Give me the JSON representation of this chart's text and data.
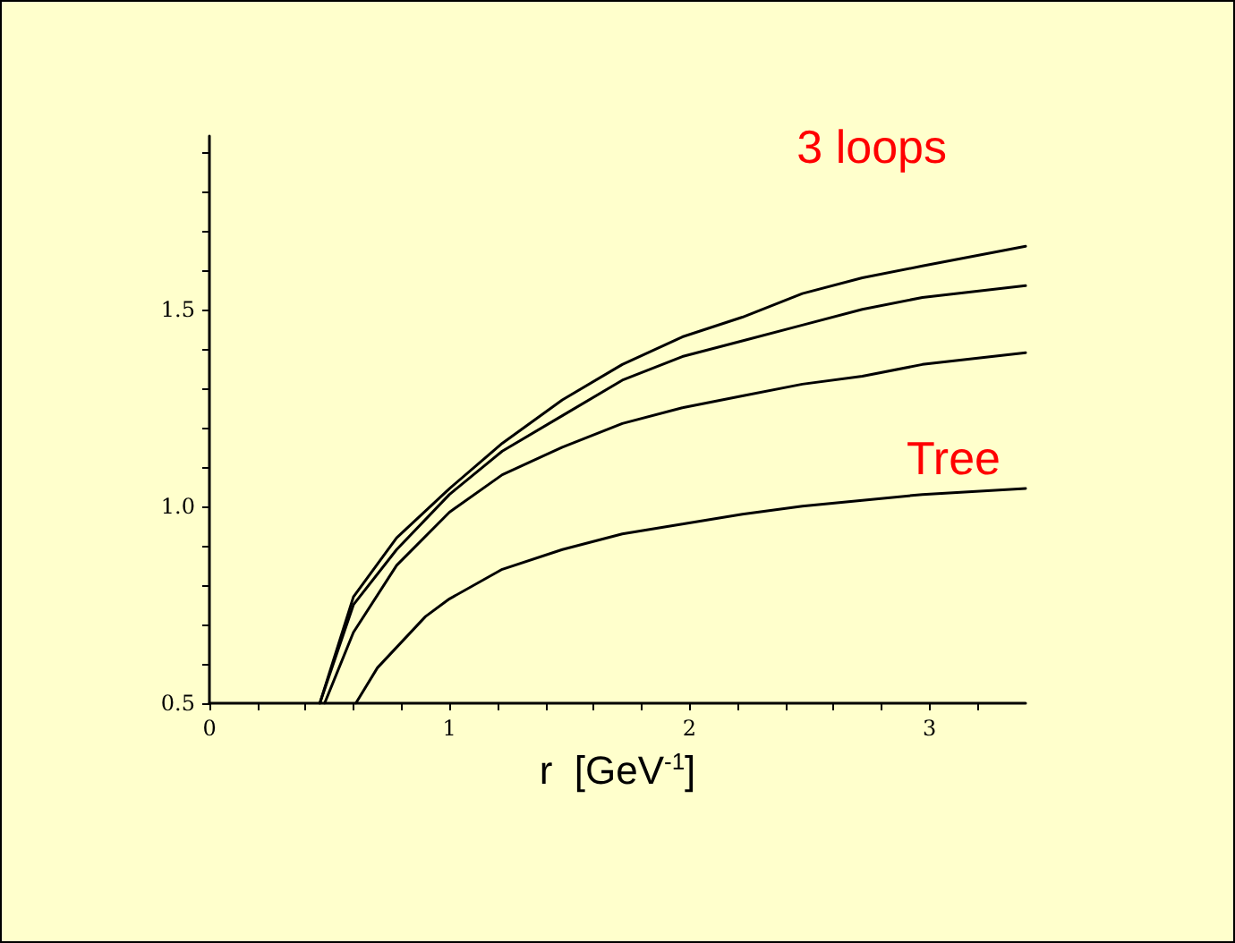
{
  "chart_data": {
    "type": "line",
    "xlabel": "r  [GeV$^{-1}$]",
    "annotations": [
      "3 loops",
      {
        "text": "Tree",
        "x": 3.1,
        "y": 1.05
      }
    ],
    "xlim": [
      0,
      3.4
    ],
    "ylim": [
      0.5,
      1.94
    ],
    "xticks": [
      0,
      {
        "value": 0.2,
        "label": null
      },
      {
        "value": 0.4,
        "label": null
      },
      {
        "value": 0.6,
        "label": null
      },
      {
        "value": 0.8,
        "label": null
      },
      1,
      {
        "value": 1.2,
        "label": null
      },
      {
        "value": 1.4,
        "label": null
      },
      {
        "value": 1.6,
        "label": null
      },
      {
        "value": 1.8,
        "label": null
      },
      2,
      {
        "value": 2.2,
        "label": null
      },
      {
        "value": 2.4,
        "label": null
      },
      {
        "value": 2.6,
        "label": null
      },
      {
        "value": 2.8,
        "label": null
      },
      3,
      {
        "value": 3.2,
        "label": null
      }
    ],
    "yticks": [
      {
        "value": 0.5,
        "label": "0.5"
      },
      {
        "value": 0.6,
        "label": null
      },
      {
        "value": 0.7,
        "label": null
      },
      {
        "value": 0.8,
        "label": null
      },
      {
        "value": 0.9,
        "label": null
      },
      {
        "value": 1.0,
        "label": "1.0"
      },
      {
        "value": 1.1,
        "label": null
      },
      {
        "value": 1.2,
        "label": null
      },
      {
        "value": 1.3,
        "label": null
      },
      {
        "value": 1.4,
        "label": null
      },
      {
        "value": 1.5,
        "label": "1.5"
      },
      {
        "value": 1.6,
        "label": null
      },
      {
        "value": 1.7,
        "label": null
      },
      {
        "value": 1.8,
        "label": null
      },
      {
        "value": 1.9,
        "label": null
      }
    ],
    "grid": false,
    "marker": "none",
    "line_style": "solid",
    "series": [
      {
        "color": "#000000",
        "x": [
          0.46,
          0.6,
          0.78,
          1.0,
          1.22,
          1.47,
          1.72,
          1.97,
          2.22,
          2.47,
          2.72,
          2.97,
          3.4
        ],
        "values": [
          0.5,
          0.77,
          0.92,
          1.045,
          1.16,
          1.27,
          1.36,
          1.43,
          1.48,
          1.54,
          1.58,
          1.61,
          1.66
        ]
      },
      {
        "color": "#000000",
        "x": [
          0.46,
          0.6,
          0.78,
          1.0,
          1.22,
          1.47,
          1.72,
          1.97,
          2.22,
          2.47,
          2.72,
          2.97,
          3.4
        ],
        "values": [
          0.5,
          0.75,
          0.89,
          1.03,
          1.14,
          1.23,
          1.32,
          1.38,
          1.42,
          1.46,
          1.5,
          1.53,
          1.56
        ]
      },
      {
        "color": "#000000",
        "x": [
          0.48,
          0.6,
          0.78,
          1.0,
          1.22,
          1.47,
          1.72,
          1.97,
          2.22,
          2.47,
          2.72,
          2.97,
          3.4
        ],
        "values": [
          0.5,
          0.68,
          0.85,
          0.985,
          1.08,
          1.15,
          1.21,
          1.25,
          1.28,
          1.31,
          1.33,
          1.36,
          1.39
        ]
      },
      {
        "color": "#000000",
        "x": [
          0.61,
          0.7,
          0.9,
          1.0,
          1.22,
          1.47,
          1.72,
          1.97,
          2.22,
          2.47,
          2.72,
          2.97,
          3.4
        ],
        "values": [
          0.5,
          0.59,
          0.72,
          0.765,
          0.84,
          0.89,
          0.93,
          0.955,
          0.98,
          1.0,
          1.015,
          1.03,
          1.045
        ]
      }
    ]
  }
}
